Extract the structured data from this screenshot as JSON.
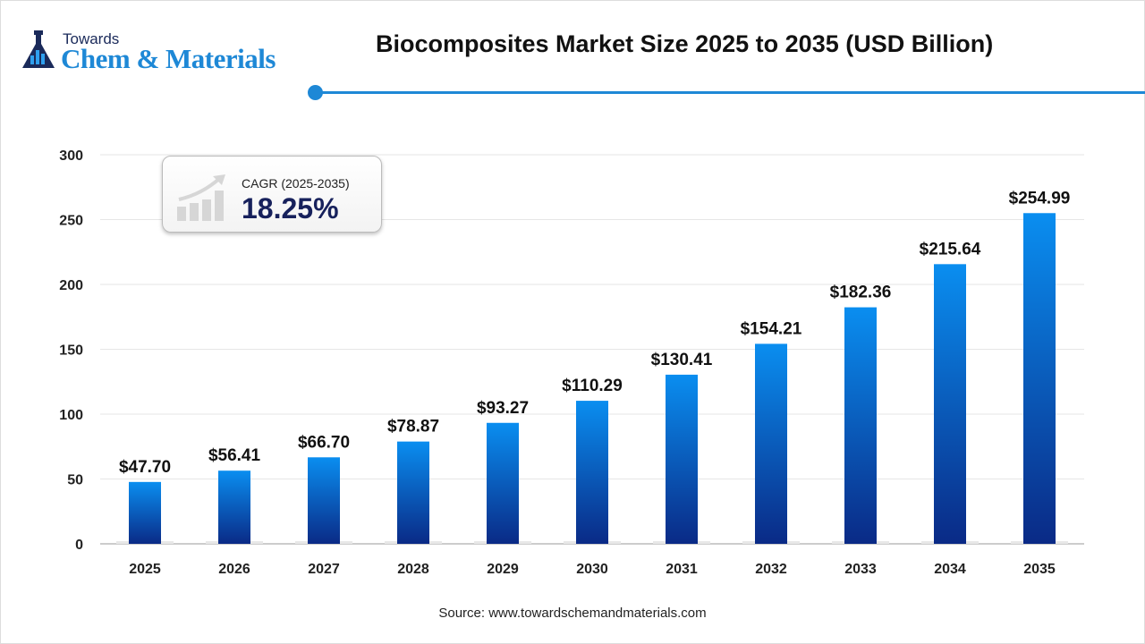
{
  "logo": {
    "line1": "Towards",
    "line2": "Chem & Materials"
  },
  "title": "Biocomposites Market Size 2025 to 2035 (USD Billion)",
  "source": "Source: www.towardschemandmaterials.com",
  "cagr": {
    "label": "CAGR (2025-2035)",
    "value": "18.25%"
  },
  "colors": {
    "accent": "#1e88d6",
    "bar_top": "#0a8ef0",
    "bar_bottom": "#0a2a86",
    "cagr_value": "#17215c"
  },
  "chart_data": {
    "type": "bar",
    "categories": [
      "2025",
      "2026",
      "2027",
      "2028",
      "2029",
      "2030",
      "2031",
      "2032",
      "2033",
      "2034",
      "2035"
    ],
    "values": [
      47.7,
      56.41,
      66.7,
      78.87,
      93.27,
      110.29,
      130.41,
      154.21,
      182.36,
      215.64,
      254.99
    ],
    "data_labels": [
      "$47.70",
      "$56.41",
      "$66.70",
      "$78.87",
      "$93.27",
      "$110.29",
      "$130.41",
      "$154.21",
      "$182.36",
      "$215.64",
      "$254.99"
    ],
    "yticks": [
      "0",
      "50",
      "100",
      "150",
      "200",
      "250",
      "300"
    ],
    "ylim": [
      0,
      300
    ],
    "grid": true,
    "title": "Biocomposites Market Size 2025 to 2035 (USD Billion)",
    "xlabel": "",
    "ylabel": ""
  }
}
